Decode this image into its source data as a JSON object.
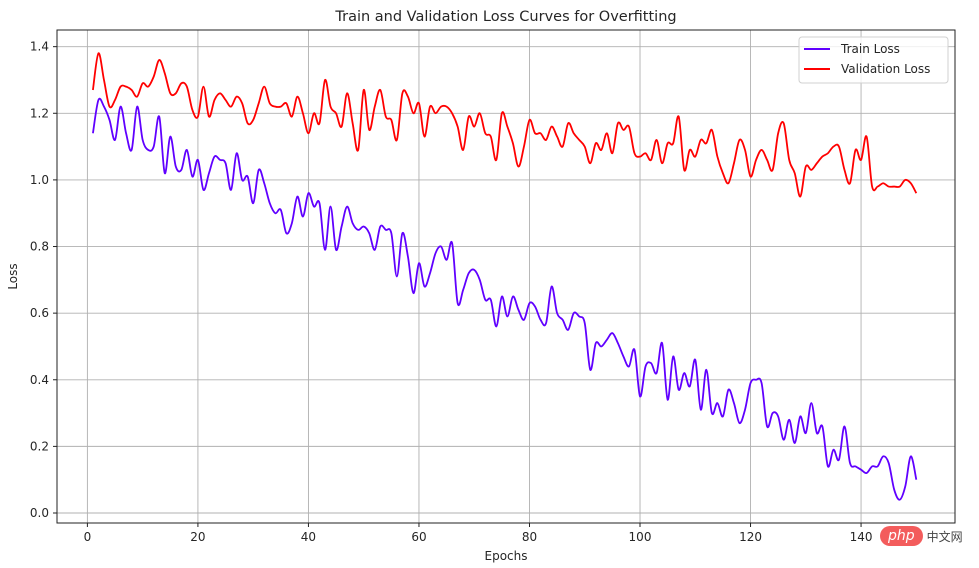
{
  "chart_data": {
    "type": "line",
    "title": "Train and Validation Loss Curves for Overfitting",
    "xlabel": "Epochs",
    "ylabel": "Loss",
    "xlim": [
      -5.5,
      157
    ],
    "ylim": [
      -0.03,
      1.45
    ],
    "xticks": [
      0,
      20,
      40,
      60,
      80,
      100,
      120,
      140
    ],
    "xtick_labels": [
      "0",
      "20",
      "40",
      "60",
      "80",
      "100",
      "120",
      "140"
    ],
    "yticks": [
      0.0,
      0.2,
      0.4,
      0.6,
      0.8,
      1.0,
      1.2,
      1.4
    ],
    "ytick_labels": [
      "0.0",
      "0.2",
      "0.4",
      "0.6",
      "0.8",
      "1.0",
      "1.2",
      "1.4"
    ],
    "grid": true,
    "legend_position": "top-right",
    "x_start": 1,
    "series": [
      {
        "name": "Train Loss",
        "color": "#6000ff",
        "values": [
          1.14,
          1.24,
          1.22,
          1.18,
          1.12,
          1.22,
          1.14,
          1.09,
          1.22,
          1.12,
          1.09,
          1.1,
          1.19,
          1.02,
          1.13,
          1.04,
          1.03,
          1.09,
          1.01,
          1.06,
          0.97,
          1.02,
          1.07,
          1.06,
          1.05,
          0.97,
          1.08,
          1.0,
          1.01,
          0.93,
          1.03,
          0.99,
          0.93,
          0.9,
          0.91,
          0.84,
          0.87,
          0.95,
          0.89,
          0.96,
          0.92,
          0.93,
          0.79,
          0.92,
          0.79,
          0.86,
          0.92,
          0.87,
          0.85,
          0.86,
          0.84,
          0.79,
          0.86,
          0.85,
          0.84,
          0.71,
          0.84,
          0.77,
          0.66,
          0.75,
          0.68,
          0.72,
          0.78,
          0.8,
          0.76,
          0.81,
          0.63,
          0.67,
          0.72,
          0.73,
          0.7,
          0.64,
          0.64,
          0.56,
          0.65,
          0.59,
          0.65,
          0.61,
          0.58,
          0.63,
          0.62,
          0.58,
          0.57,
          0.68,
          0.6,
          0.58,
          0.55,
          0.6,
          0.59,
          0.57,
          0.43,
          0.51,
          0.5,
          0.52,
          0.54,
          0.51,
          0.47,
          0.44,
          0.49,
          0.35,
          0.44,
          0.45,
          0.42,
          0.51,
          0.34,
          0.47,
          0.37,
          0.42,
          0.38,
          0.46,
          0.31,
          0.43,
          0.3,
          0.33,
          0.29,
          0.37,
          0.33,
          0.27,
          0.31,
          0.39,
          0.4,
          0.39,
          0.26,
          0.3,
          0.29,
          0.22,
          0.28,
          0.21,
          0.29,
          0.24,
          0.33,
          0.24,
          0.26,
          0.14,
          0.19,
          0.16,
          0.26,
          0.15,
          0.14,
          0.13,
          0.12,
          0.14,
          0.14,
          0.17,
          0.15,
          0.07,
          0.04,
          0.08,
          0.17,
          0.1
        ]
      },
      {
        "name": "Validation Loss",
        "color": "#ff0000",
        "values": [
          1.27,
          1.38,
          1.3,
          1.22,
          1.24,
          1.28,
          1.28,
          1.27,
          1.25,
          1.29,
          1.28,
          1.31,
          1.36,
          1.32,
          1.26,
          1.26,
          1.29,
          1.28,
          1.21,
          1.19,
          1.28,
          1.19,
          1.24,
          1.26,
          1.24,
          1.22,
          1.25,
          1.23,
          1.17,
          1.18,
          1.23,
          1.28,
          1.23,
          1.22,
          1.22,
          1.23,
          1.19,
          1.25,
          1.2,
          1.14,
          1.2,
          1.17,
          1.3,
          1.22,
          1.2,
          1.16,
          1.26,
          1.17,
          1.09,
          1.27,
          1.15,
          1.22,
          1.27,
          1.19,
          1.18,
          1.12,
          1.26,
          1.25,
          1.2,
          1.23,
          1.13,
          1.22,
          1.2,
          1.22,
          1.22,
          1.2,
          1.16,
          1.09,
          1.19,
          1.16,
          1.2,
          1.14,
          1.13,
          1.06,
          1.2,
          1.16,
          1.11,
          1.04,
          1.1,
          1.18,
          1.14,
          1.14,
          1.12,
          1.16,
          1.13,
          1.1,
          1.17,
          1.14,
          1.12,
          1.1,
          1.05,
          1.11,
          1.09,
          1.14,
          1.08,
          1.17,
          1.15,
          1.16,
          1.08,
          1.07,
          1.08,
          1.06,
          1.12,
          1.05,
          1.11,
          1.11,
          1.19,
          1.03,
          1.09,
          1.07,
          1.12,
          1.11,
          1.15,
          1.07,
          1.02,
          0.99,
          1.05,
          1.12,
          1.09,
          1.01,
          1.06,
          1.09,
          1.06,
          1.03,
          1.14,
          1.17,
          1.06,
          1.02,
          0.95,
          1.04,
          1.03,
          1.05,
          1.07,
          1.08,
          1.1,
          1.1,
          1.03,
          0.99,
          1.09,
          1.06,
          1.13,
          0.98,
          0.98,
          0.99,
          0.98,
          0.98,
          0.98,
          1.0,
          0.99,
          0.96
        ]
      }
    ]
  },
  "watermark": {
    "pill": "php",
    "text": "中文网"
  }
}
